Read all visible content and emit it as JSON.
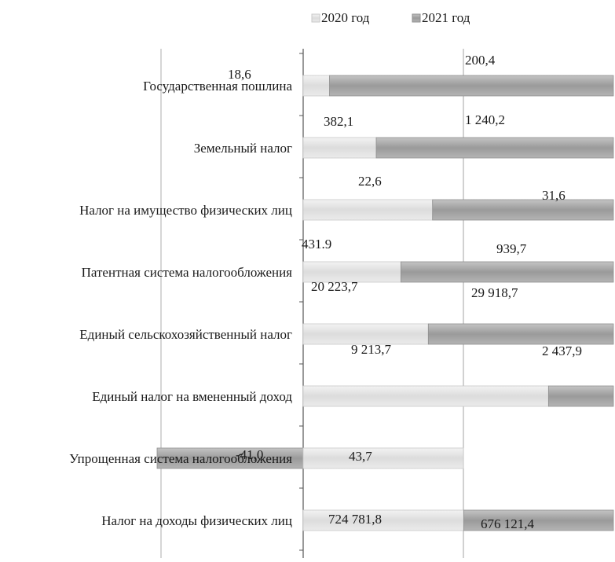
{
  "chart_data": {
    "type": "bar",
    "orientation": "horizontal",
    "stacked": true,
    "legend_position": "top",
    "grid": false,
    "categories": [
      "Государственная пошлина",
      "Земельный налог",
      "Налог на имущество физических лиц",
      "Патентная система налогообложения",
      "Единый сельскохозяйственный налог",
      "Единый налог на вмененный доход",
      "Упрощенная система налогообложения",
      "Налог на доходы физических лиц"
    ],
    "series": [
      {
        "name": "2020 год",
        "color": "#e3e3e3",
        "values": [
          18.6,
          382.1,
          22.6,
          431.9,
          20223.7,
          9213.7,
          -41.0,
          724781.8
        ],
        "labels": [
          "18,6",
          "382,1",
          "22,6",
          "431.9",
          "20 223,7",
          "9 213,7",
          "-41,0",
          "724 781,8"
        ]
      },
      {
        "name": "2021 год",
        "color": "#a9a9a9",
        "values": [
          200.4,
          1240.2,
          31.6,
          939.7,
          29918.7,
          2437.9,
          43.7,
          676121.4
        ],
        "labels": [
          "200,4",
          "1 240,2",
          "31,6",
          "939,7",
          "29 918,7",
          "2 437,9",
          "43,7",
          "676 121,4"
        ]
      }
    ]
  }
}
